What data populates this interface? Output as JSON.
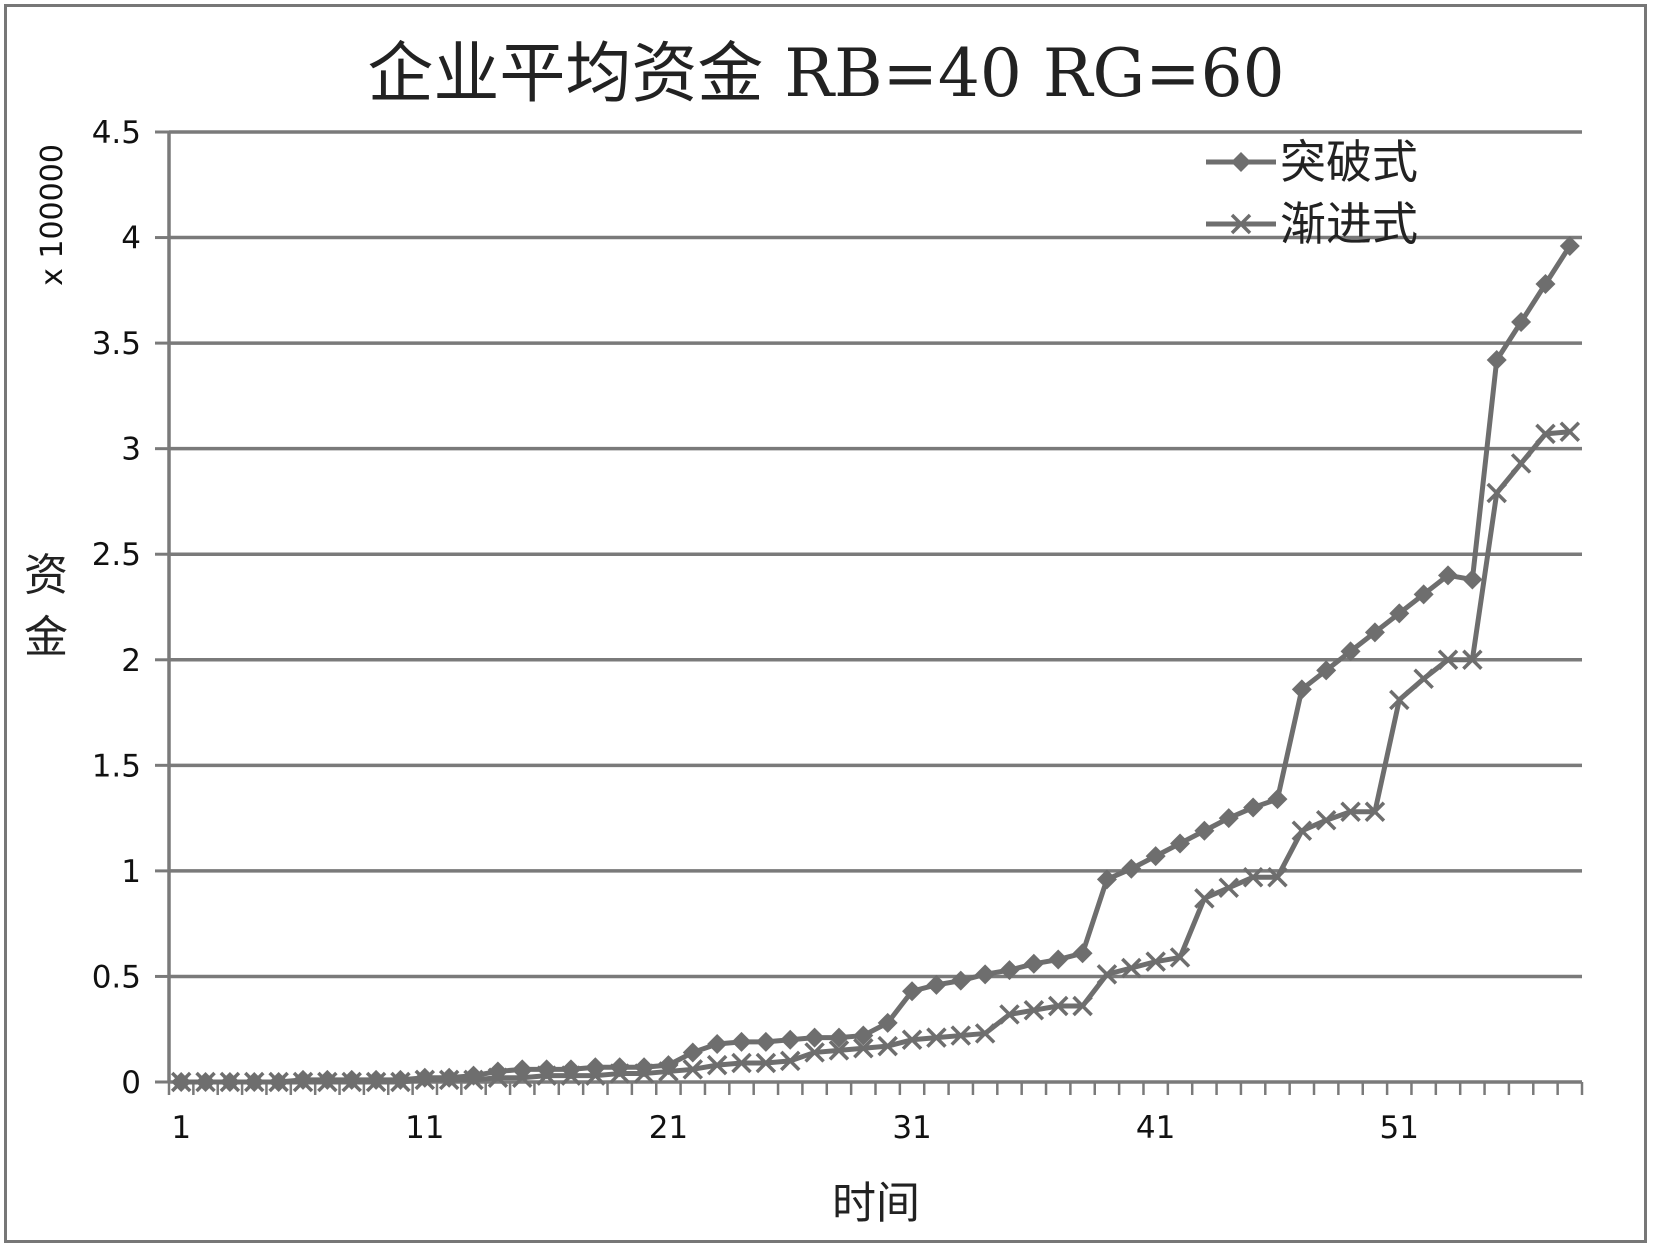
{
  "chart_data": {
    "type": "line",
    "title": "企业平均资金 RB=40 RG=60",
    "xlabel": "时间",
    "ylabel": "资金",
    "y_scale_label": "x 100000",
    "x": [
      1,
      2,
      3,
      4,
      5,
      6,
      7,
      8,
      9,
      10,
      11,
      12,
      13,
      14,
      15,
      16,
      17,
      18,
      19,
      20,
      21,
      22,
      23,
      24,
      25,
      26,
      27,
      28,
      29,
      30,
      31,
      32,
      33,
      34,
      35,
      36,
      37,
      38,
      39,
      40,
      41,
      42,
      43,
      44,
      45,
      46,
      47,
      48,
      49,
      50,
      51,
      52,
      53,
      54,
      55,
      56,
      57,
      58
    ],
    "xlim": [
      1,
      59
    ],
    "x_ticks": [
      1,
      11,
      21,
      31,
      41,
      51
    ],
    "ylim": [
      0,
      4.5
    ],
    "y_ticks": [
      "0",
      "0.5",
      "1",
      "1.5",
      "2",
      "2.5",
      "3",
      "3.5",
      "4",
      "4.5"
    ],
    "grid": true,
    "legend_position": "top-right",
    "series": [
      {
        "name": "突破式",
        "marker": "diamond",
        "color": "#6e6e6e",
        "values": [
          0,
          0,
          0,
          0,
          0,
          0.01,
          0.01,
          0.01,
          0.01,
          0.01,
          0.02,
          0.02,
          0.03,
          0.05,
          0.06,
          0.06,
          0.06,
          0.07,
          0.07,
          0.07,
          0.08,
          0.14,
          0.18,
          0.19,
          0.19,
          0.2,
          0.21,
          0.21,
          0.22,
          0.28,
          0.43,
          0.46,
          0.48,
          0.51,
          0.53,
          0.56,
          0.58,
          0.61,
          0.96,
          1.01,
          1.07,
          1.13,
          1.19,
          1.25,
          1.3,
          1.34,
          1.86,
          1.95,
          2.04,
          2.13,
          2.22,
          2.31,
          2.4,
          2.38,
          3.42,
          3.6,
          3.78,
          3.96
        ]
      },
      {
        "name": "渐进式",
        "marker": "x",
        "color": "#6e6e6e",
        "values": [
          0,
          0,
          0,
          0,
          0,
          0,
          0,
          0,
          0,
          0,
          0.01,
          0.01,
          0.01,
          0.02,
          0.02,
          0.03,
          0.03,
          0.03,
          0.04,
          0.04,
          0.05,
          0.06,
          0.08,
          0.09,
          0.09,
          0.1,
          0.14,
          0.15,
          0.16,
          0.17,
          0.2,
          0.21,
          0.22,
          0.23,
          0.32,
          0.34,
          0.36,
          0.36,
          0.51,
          0.54,
          0.57,
          0.59,
          0.87,
          0.92,
          0.97,
          0.97,
          1.19,
          1.24,
          1.28,
          1.28,
          1.81,
          1.91,
          2.0,
          2.0,
          2.79,
          2.93,
          3.07,
          3.08
        ]
      }
    ]
  }
}
